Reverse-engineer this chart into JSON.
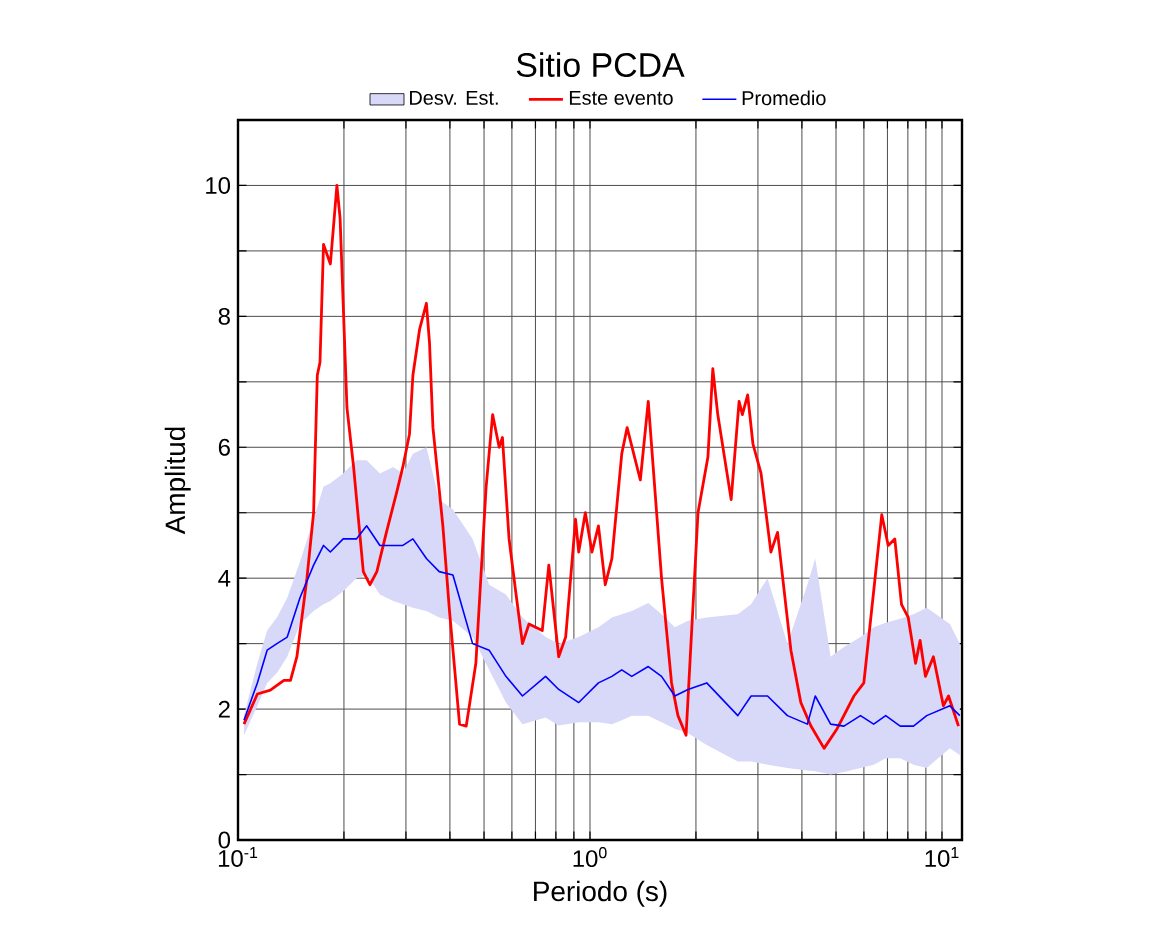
{
  "chart_data": {
    "type": "line",
    "title": "Sitio PCDA",
    "xlabel": "Periodo (s)",
    "ylabel": "Amplitud",
    "log": "x",
    "grid": true,
    "legend": "top",
    "xlim": [
      0.1,
      11.4
    ],
    "ylim": [
      0,
      11
    ],
    "xticks": [
      {
        "value": 0.1,
        "label": "10$^{-1}$"
      },
      {
        "value": 0.2,
        "label": null
      },
      {
        "value": 0.3,
        "label": null
      },
      {
        "value": 0.4,
        "label": null
      },
      {
        "value": 0.5,
        "label": null
      },
      {
        "value": 0.6,
        "label": null
      },
      {
        "value": 0.7,
        "label": null
      },
      {
        "value": 0.8,
        "label": null
      },
      {
        "value": 0.9,
        "label": null
      },
      {
        "value": 1,
        "label": "10$^{0}$"
      },
      {
        "value": 2,
        "label": null
      },
      {
        "value": 3,
        "label": null
      },
      {
        "value": 4,
        "label": null
      },
      {
        "value": 5,
        "label": null
      },
      {
        "value": 6,
        "label": null
      },
      {
        "value": 7,
        "label": null
      },
      {
        "value": 8,
        "label": null
      },
      {
        "value": 9,
        "label": null
      },
      {
        "value": 10,
        "label": "10$^{1}$"
      }
    ],
    "yticks": [
      0,
      {
        "value": 1,
        "label": null
      },
      2,
      {
        "value": 3,
        "label": null
      },
      4,
      {
        "value": 5,
        "label": null
      },
      6,
      {
        "value": 7,
        "label": null
      },
      8,
      {
        "value": 9,
        "label": null
      },
      10
    ],
    "series": [
      {
        "name": "Este evento",
        "color": "#ff0000",
        "x": [
          0.104,
          0.1135,
          0.1236,
          0.135,
          0.141,
          0.147,
          0.157,
          0.164,
          0.168,
          0.171,
          0.175,
          0.183,
          0.187,
          0.191,
          0.195,
          0.204,
          0.213,
          0.227,
          0.237,
          0.248,
          0.264,
          0.282,
          0.294,
          0.307,
          0.314,
          0.328,
          0.343,
          0.35,
          0.358,
          0.382,
          0.399,
          0.426,
          0.445,
          0.474,
          0.507,
          0.529,
          0.552,
          0.564,
          0.589,
          0.615,
          0.643,
          0.671,
          0.732,
          0.764,
          0.815,
          0.853,
          0.91,
          0.929,
          0.97,
          1.013,
          1.057,
          1.105,
          1.154,
          1.231,
          1.275,
          1.39,
          1.464,
          1.597,
          1.705,
          1.778,
          1.875,
          2.027,
          2.163,
          2.233,
          2.307,
          2.518,
          2.652,
          2.71,
          2.805,
          2.904,
          3.062,
          3.266,
          3.411,
          3.722,
          3.972,
          4.236,
          4.624,
          5.036,
          5.623,
          5.998,
          6.397,
          6.745,
          7.036,
          7.345,
          7.674,
          8.017,
          8.414,
          8.667,
          8.974,
          9.454,
          10.09,
          10.44,
          11.14
        ],
        "values": [
          1.77,
          2.23,
          2.29,
          2.44,
          2.44,
          2.8,
          4.0,
          5.0,
          7.1,
          7.3,
          9.1,
          8.8,
          9.4,
          10.0,
          9.5,
          6.6,
          5.7,
          4.1,
          3.9,
          4.1,
          4.7,
          5.3,
          5.7,
          6.2,
          7.1,
          7.8,
          8.2,
          7.6,
          6.3,
          4.8,
          3.5,
          1.77,
          1.74,
          2.7,
          5.4,
          6.5,
          6.0,
          6.15,
          4.6,
          3.8,
          3.0,
          3.3,
          3.2,
          4.2,
          2.8,
          3.1,
          4.9,
          4.4,
          5.0,
          4.4,
          4.8,
          3.9,
          4.3,
          5.9,
          6.3,
          5.5,
          6.7,
          4.0,
          2.4,
          1.9,
          1.6,
          5.0,
          5.85,
          7.2,
          6.5,
          5.2,
          6.7,
          6.5,
          6.8,
          6.05,
          5.6,
          4.4,
          4.7,
          2.9,
          2.1,
          1.75,
          1.4,
          1.7,
          2.2,
          2.4,
          3.8,
          4.97,
          4.5,
          4.6,
          3.6,
          3.4,
          2.7,
          3.05,
          2.5,
          2.8,
          2.05,
          2.2,
          1.74
        ]
      },
      {
        "name": "Promedio",
        "color": "#0000ff",
        "x": [
          0.104,
          0.1135,
          0.121,
          0.129,
          0.138,
          0.15,
          0.164,
          0.175,
          0.183,
          0.199,
          0.217,
          0.232,
          0.253,
          0.276,
          0.294,
          0.314,
          0.343,
          0.373,
          0.408,
          0.464,
          0.517,
          0.577,
          0.643,
          0.748,
          0.815,
          0.929,
          1.057,
          1.154,
          1.231,
          1.314,
          1.464,
          1.597,
          1.742,
          1.899,
          2.146,
          2.63,
          2.869,
          3.195,
          3.639,
          4.146,
          4.365,
          4.827,
          5.266,
          5.868,
          6.397,
          6.92,
          7.61,
          8.3,
          9.05,
          10.53,
          11.24
        ],
        "values": [
          1.83,
          2.4,
          2.9,
          3.0,
          3.1,
          3.7,
          4.2,
          4.5,
          4.4,
          4.6,
          4.6,
          4.8,
          4.5,
          4.5,
          4.5,
          4.6,
          4.3,
          4.1,
          4.05,
          3.0,
          2.9,
          2.5,
          2.2,
          2.5,
          2.3,
          2.1,
          2.4,
          2.5,
          2.6,
          2.5,
          2.65,
          2.5,
          2.2,
          2.3,
          2.4,
          1.9,
          2.2,
          2.2,
          1.9,
          1.77,
          2.2,
          1.77,
          1.74,
          1.9,
          1.77,
          1.9,
          1.74,
          1.74,
          1.9,
          2.05,
          1.9
        ]
      },
      {
        "name": "Desv. Est.",
        "type": "area",
        "color": "#d8d8f8",
        "x": [
          0.104,
          0.1135,
          0.121,
          0.129,
          0.138,
          0.15,
          0.164,
          0.175,
          0.183,
          0.199,
          0.217,
          0.232,
          0.253,
          0.276,
          0.294,
          0.314,
          0.343,
          0.373,
          0.408,
          0.464,
          0.517,
          0.577,
          0.643,
          0.748,
          0.815,
          0.929,
          1.057,
          1.154,
          1.231,
          1.314,
          1.464,
          1.597,
          1.742,
          1.899,
          2.146,
          2.63,
          2.869,
          3.195,
          3.639,
          4.146,
          4.365,
          4.827,
          5.266,
          5.868,
          6.397,
          6.92,
          7.61,
          8.3,
          9.05,
          10.53,
          11.24
        ],
        "values": [
          null,
          null,
          null,
          null,
          null,
          null,
          null,
          null,
          null,
          null,
          null,
          null,
          null,
          null,
          null,
          null,
          null,
          null,
          null,
          null,
          null,
          null,
          null,
          null,
          null,
          null,
          null,
          null,
          null,
          null,
          null,
          null,
          null,
          null,
          null,
          null,
          null,
          null,
          null,
          null,
          null,
          null,
          null,
          null,
          null,
          null,
          null,
          null,
          null,
          null,
          null
        ],
        "upper": [
          1.9,
          2.7,
          3.2,
          3.4,
          3.7,
          4.25,
          4.9,
          5.4,
          5.45,
          5.6,
          5.8,
          5.8,
          5.6,
          5.7,
          5.6,
          5.9,
          6.0,
          5.2,
          5.05,
          4.6,
          3.9,
          3.75,
          3.4,
          3.1,
          3.0,
          3.1,
          3.25,
          3.4,
          3.45,
          3.5,
          3.62,
          3.45,
          3.25,
          3.35,
          3.4,
          3.45,
          3.6,
          4.0,
          3.0,
          3.9,
          4.3,
          2.8,
          2.95,
          3.1,
          3.25,
          3.32,
          3.38,
          3.45,
          3.55,
          3.3,
          3.0
        ],
        "lower": [
          1.6,
          2.05,
          2.4,
          2.55,
          2.8,
          3.3,
          3.5,
          3.6,
          3.65,
          3.8,
          4.0,
          4.05,
          3.75,
          3.65,
          3.6,
          3.55,
          3.5,
          3.4,
          3.35,
          3.1,
          2.6,
          2.1,
          1.77,
          1.87,
          1.75,
          1.8,
          1.8,
          1.77,
          1.83,
          1.9,
          1.9,
          1.8,
          1.7,
          1.63,
          1.45,
          1.2,
          1.2,
          1.15,
          1.1,
          1.06,
          1.05,
          1.0,
          1.04,
          1.1,
          1.15,
          1.25,
          1.25,
          1.15,
          1.1,
          1.4,
          1.3
        ]
      }
    ]
  }
}
